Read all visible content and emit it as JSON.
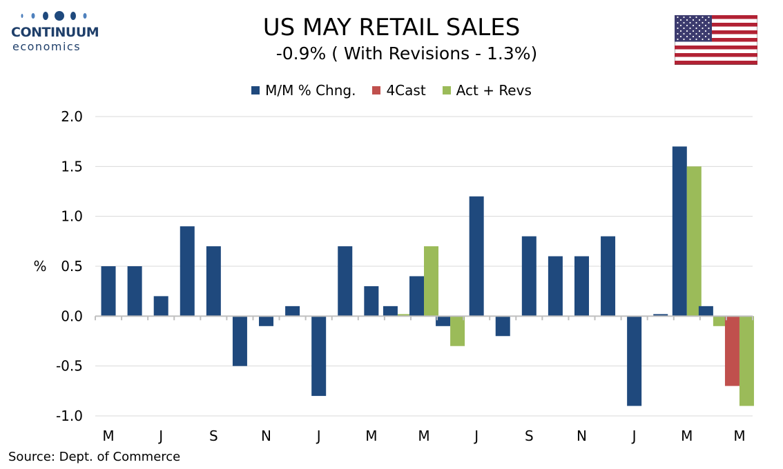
{
  "logo": {
    "name": "CONTINUUM",
    "sub": "economics"
  },
  "header": {
    "title": "US MAY RETAIL SALES",
    "subtitle": "-0.9% ( With Revisions - 1.3%)"
  },
  "flag": {
    "icon": "us-flag-icon"
  },
  "source": "Source: Dept. of Commerce",
  "chart_data": {
    "type": "bar",
    "title": "US MAY RETAIL SALES",
    "subtitle": "-0.9% ( With Revisions - 1.3%)",
    "ylabel": "%",
    "ylim": [
      -1.0,
      2.0
    ],
    "yticks": [
      2.0,
      1.5,
      1.0,
      0.5,
      0.0,
      -0.5,
      -1.0
    ],
    "ytick_labels": [
      "2.0",
      "1.5",
      "1.0",
      "0.5",
      "0.0",
      "-0.5",
      "-1.0"
    ],
    "xtick_labels": [
      "M",
      "J",
      "S",
      "N",
      "J",
      "M",
      "M",
      "J",
      "S",
      "N",
      "J",
      "M",
      "M"
    ],
    "xtick_every": 2,
    "grid": true,
    "legend_position": "top-center",
    "series": [
      {
        "name": "M/M % Chng.",
        "color": "#1f497d",
        "values": [
          0.5,
          0.5,
          0.2,
          0.9,
          0.7,
          -0.5,
          -0.1,
          0.1,
          -0.8,
          0.7,
          0.3,
          0.1,
          0.4,
          -0.1,
          1.2,
          -0.2,
          0.8,
          0.6,
          0.6,
          0.8,
          -0.9,
          0.02,
          1.7,
          0.1,
          null
        ]
      },
      {
        "name": "4Cast",
        "color": "#c0504d",
        "values": [
          null,
          null,
          null,
          null,
          null,
          null,
          null,
          null,
          null,
          null,
          null,
          null,
          null,
          null,
          null,
          null,
          null,
          null,
          null,
          null,
          null,
          null,
          null,
          null,
          -0.7
        ]
      },
      {
        "name": "Act + Revs",
        "color": "#9bbb59",
        "values": [
          null,
          null,
          null,
          null,
          null,
          null,
          null,
          null,
          null,
          null,
          null,
          0.02,
          0.7,
          -0.3,
          null,
          null,
          null,
          null,
          null,
          null,
          null,
          null,
          1.5,
          -0.1,
          -0.9
        ]
      }
    ]
  }
}
